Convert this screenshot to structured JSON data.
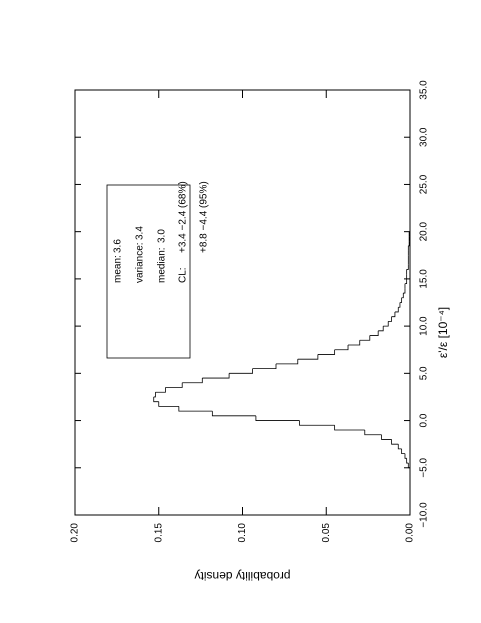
{
  "chart_data": {
    "type": "histogram",
    "x_label": "ε'/ε [10⁻⁴]",
    "y_label": "probability density",
    "bins": [
      -5,
      -4.5,
      -4,
      -3.5,
      -3,
      -2.5,
      -2,
      -1.5,
      -1,
      -0.5,
      0,
      0.5,
      1,
      1.5,
      2,
      2.5,
      3,
      3.5,
      4,
      4.5,
      5,
      5.5,
      6,
      6.5,
      7,
      7.5,
      8,
      8.5,
      9,
      9.5,
      10,
      10.5,
      11,
      11.5,
      12,
      12.5,
      13,
      13.5,
      14,
      14.5,
      15,
      15.5,
      16,
      16.5,
      17,
      17.5,
      18,
      18.5,
      19,
      19.5,
      20
    ],
    "values": [
      0.001,
      0.002,
      0.003,
      0.005,
      0.007,
      0.011,
      0.017,
      0.027,
      0.045,
      0.066,
      0.092,
      0.118,
      0.138,
      0.15,
      0.153,
      0.152,
      0.146,
      0.136,
      0.124,
      0.108,
      0.094,
      0.08,
      0.067,
      0.055,
      0.045,
      0.037,
      0.03,
      0.024,
      0.019,
      0.016,
      0.013,
      0.011,
      0.009,
      0.007,
      0.006,
      0.005,
      0.004,
      0.003,
      0.003,
      0.002,
      0.002,
      0.002,
      0.001,
      0.001,
      0.001,
      0.001,
      0.001,
      0.0005,
      0.0005,
      0.0005
    ],
    "color": "#000000",
    "xlim": [
      -10,
      35
    ],
    "xticks": [
      {
        "value": -10,
        "label": "−10.0"
      },
      {
        "value": -5,
        "label": "−5.0"
      },
      {
        "value": 0,
        "label": "0.0"
      },
      {
        "value": 5,
        "label": "5.0"
      },
      {
        "value": 10,
        "label": "10.0"
      },
      {
        "value": 15,
        "label": "15.0"
      },
      {
        "value": 20,
        "label": "20.0"
      },
      {
        "value": 25,
        "label": "25.0"
      },
      {
        "value": 30,
        "label": "30.0"
      },
      {
        "value": 35,
        "label": "35.0"
      }
    ],
    "ylim": [
      0,
      0.2
    ],
    "yticks": [
      {
        "value": 0,
        "label": "0.00"
      },
      {
        "value": 0.05,
        "label": "0.05"
      },
      {
        "value": 0.1,
        "label": "0.10"
      },
      {
        "value": 0.15,
        "label": "0.15"
      },
      {
        "value": 0.2,
        "label": "0.20"
      }
    ],
    "stats": [
      {
        "label": "mean:",
        "value": "3.6"
      },
      {
        "label": "variance:",
        "value": "3.4"
      },
      {
        "label": "median:",
        "value": "3.0"
      },
      {
        "label": "CL:",
        "value": "+3.4 −2.4 (68%)"
      },
      {
        "value": "+8.8 −4.4 (95%)"
      }
    ]
  }
}
